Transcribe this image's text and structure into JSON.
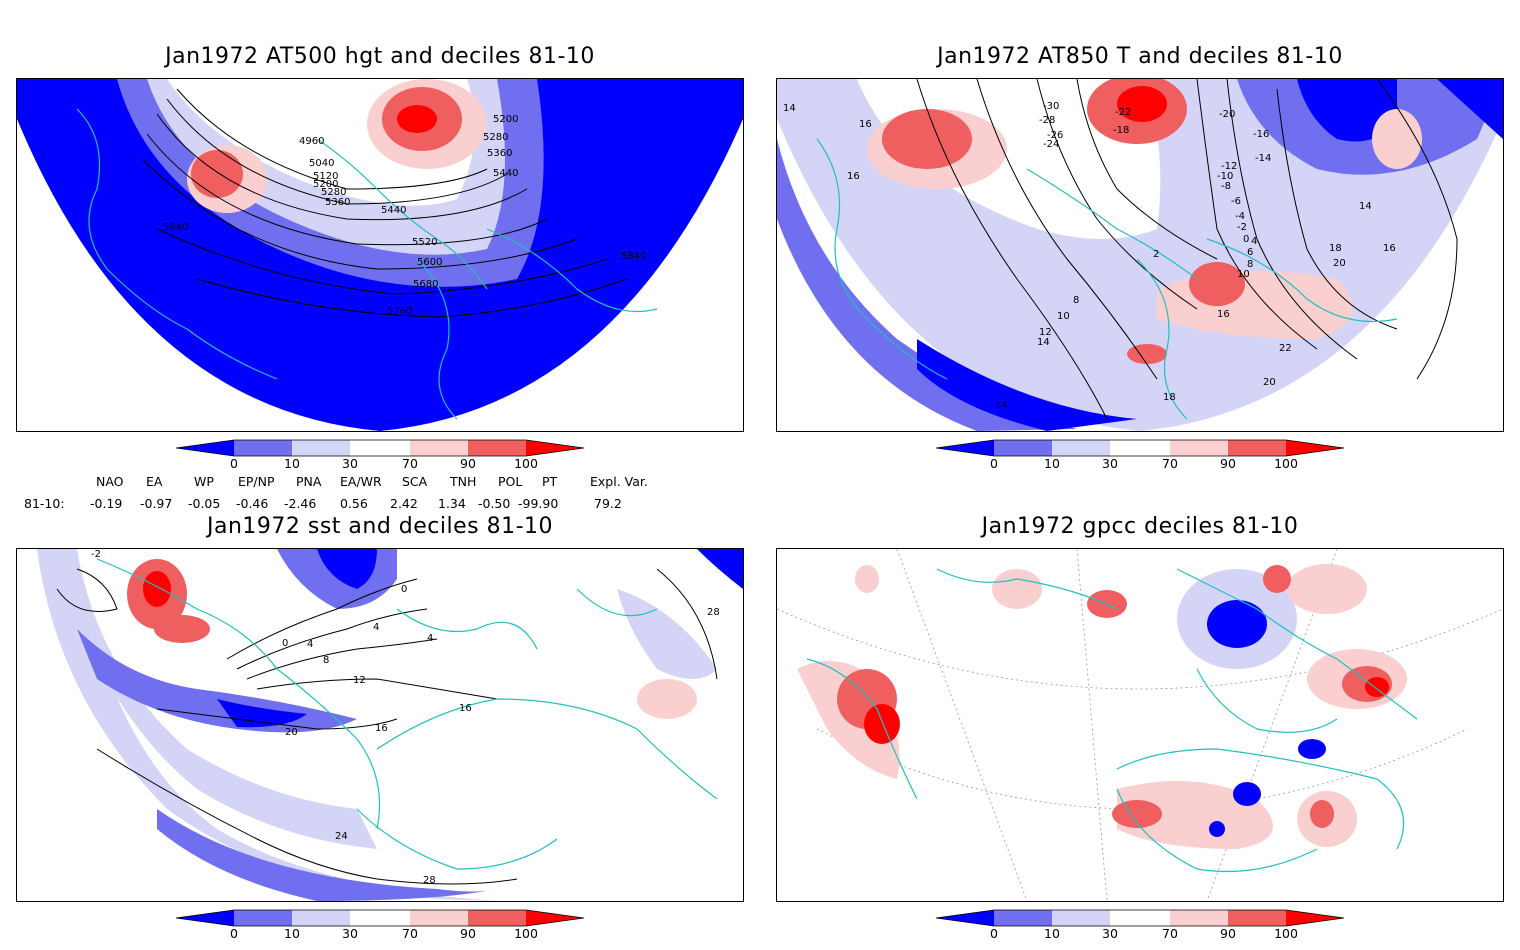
{
  "panels": [
    {
      "title": "Jan1972 AT500 hgt and deciles 81-10",
      "contour_labels": [
        "4960",
        "5040",
        "5120",
        "5200",
        "5280",
        "5360",
        "5440",
        "5520",
        "5600",
        "5680",
        "5760",
        "5840",
        "5200",
        "5280",
        "5360",
        "5440",
        "5840"
      ]
    },
    {
      "title": "Jan1972 AT850 T and deciles 81-10",
      "contour_labels": [
        "14",
        "16",
        "16",
        "-30",
        "-28",
        "-26",
        "-24",
        "-22",
        "-20",
        "-18",
        "-16",
        "-14",
        "-12",
        "-10",
        "-8",
        "-6",
        "-4",
        "-2",
        "0",
        "2",
        "4",
        "6",
        "8",
        "10",
        "12",
        "14",
        "16",
        "18",
        "20",
        "22",
        "20",
        "18",
        "14",
        "16",
        "10",
        "8",
        "14"
      ]
    },
    {
      "title": "Jan1972 sst and deciles 81-10",
      "contour_labels": [
        "-2",
        "0",
        "0",
        "4",
        "8",
        "12",
        "16",
        "16",
        "20",
        "24",
        "28",
        "28",
        "4",
        "4"
      ]
    },
    {
      "title": "Jan1972 gpcc deciles 81-10",
      "contour_labels": []
    }
  ],
  "colorbar": {
    "labels": [
      "0",
      "10",
      "30",
      "70",
      "90",
      "100"
    ],
    "colors": [
      "#0000ff",
      "#6f6fef",
      "#d4d4f7",
      "#ffffff",
      "#f9cfcf",
      "#ef5f5f",
      "#ff0000"
    ]
  },
  "indices": {
    "headers": [
      "NAO",
      "EA",
      "WP",
      "EP/NP",
      "PNA",
      "EA/WR",
      "SCA",
      "TNH",
      "POL",
      "PT",
      "Expl. Var."
    ],
    "row_label": "81-10:",
    "values": [
      "-0.19",
      "-0.97",
      "-0.05",
      "-0.46",
      "-2.46",
      "0.56",
      "2.42",
      "1.34",
      "-0.50",
      "-99.90",
      "79.2"
    ]
  },
  "map_colors": {
    "coast": "#20c0c0",
    "deep_blue": "#0000ff",
    "mid_blue": "#6f6fef",
    "light_blue": "#d4d4f7",
    "light_red": "#f9cfcf",
    "mid_red": "#ef5f5f",
    "deep_red": "#ff0000"
  }
}
